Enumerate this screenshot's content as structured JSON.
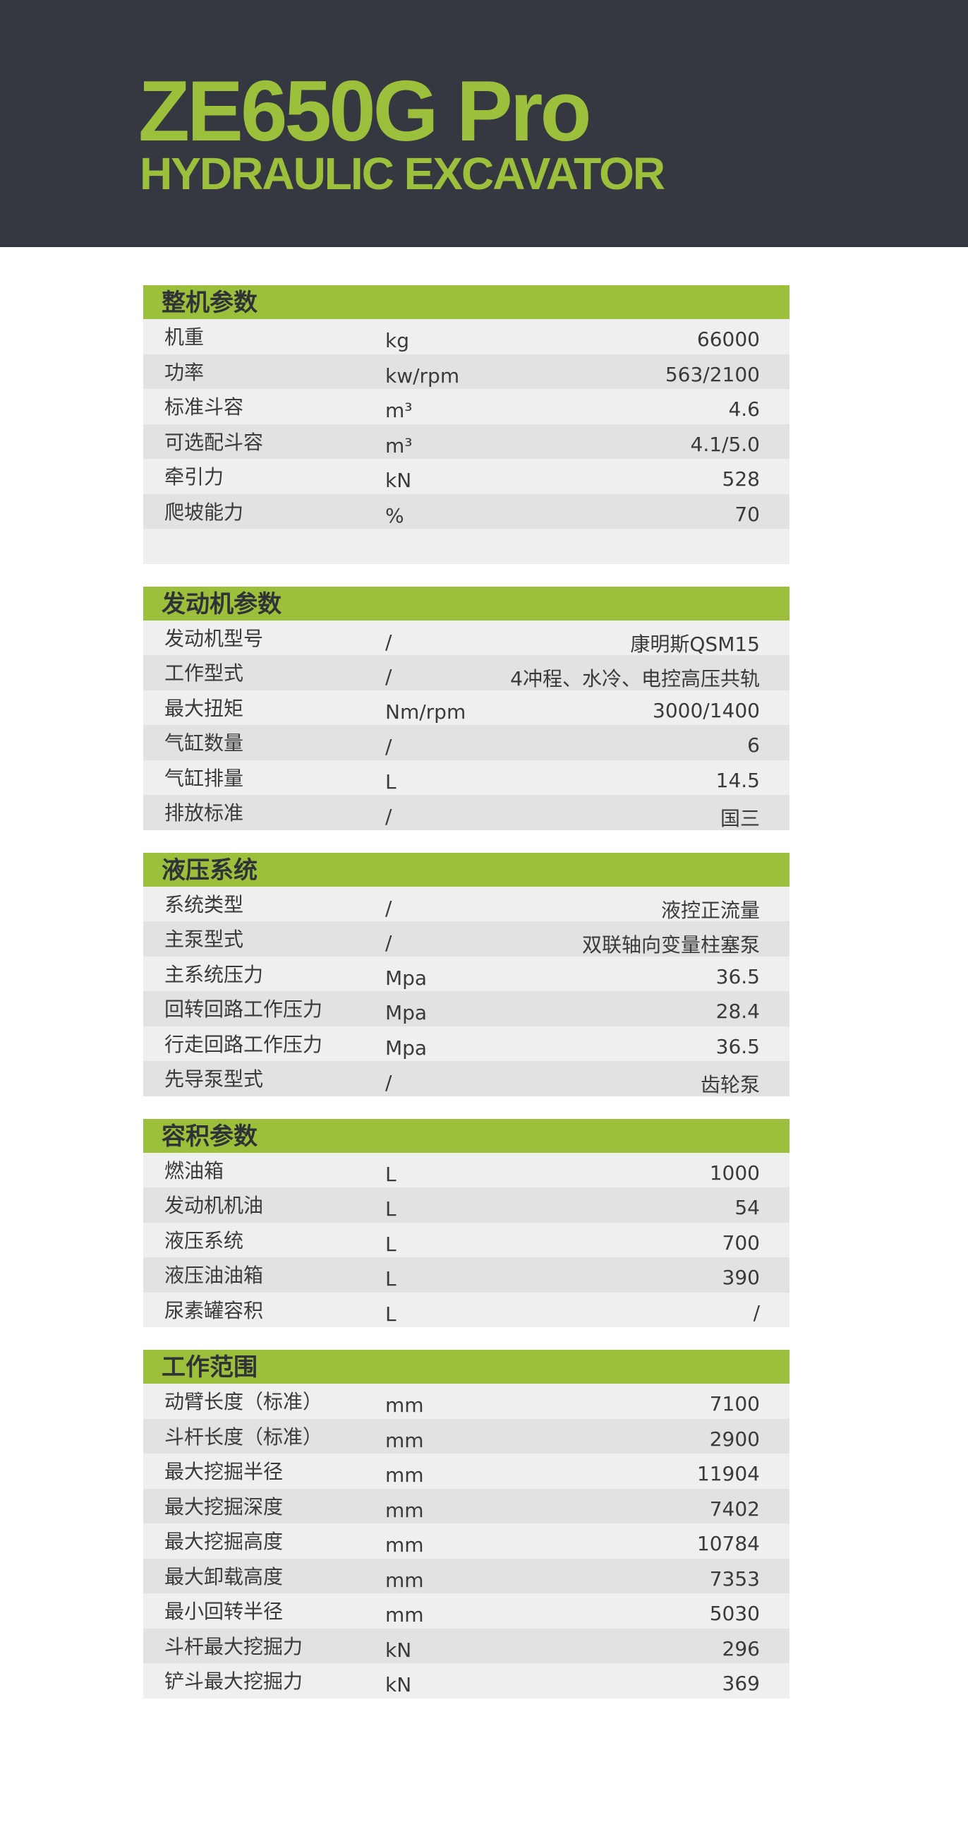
{
  "header": {
    "title": "ZE650G Pro",
    "subtitle": "HYDRAULIC EXCAVATOR"
  },
  "colors": {
    "header_bg": "#353840",
    "accent": "#9dc03c"
  },
  "sections": [
    {
      "title": "整机参数",
      "rows": [
        {
          "label": "机重",
          "unit": "kg",
          "value": "66000"
        },
        {
          "label": "功率",
          "unit": "kw/rpm",
          "value": "563/2100"
        },
        {
          "label": "标准斗容",
          "unit": "m³",
          "value": "4.6"
        },
        {
          "label": "可选配斗容",
          "unit": "m³",
          "value": "4.1/5.0"
        },
        {
          "label": "牵引力",
          "unit": "kN",
          "value": "528"
        },
        {
          "label": "爬坡能力",
          "unit": "%",
          "value": "70"
        },
        {
          "label": "",
          "unit": "",
          "value": ""
        }
      ]
    },
    {
      "title": "发动机参数",
      "rows": [
        {
          "label": "发动机型号",
          "unit": "/",
          "value": "康明斯QSM15"
        },
        {
          "label": "工作型式",
          "unit": "/",
          "value": "4冲程、水冷、电控高压共轨"
        },
        {
          "label": "最大扭矩",
          "unit": "Nm/rpm",
          "value": "3000/1400"
        },
        {
          "label": "气缸数量",
          "unit": "/",
          "value": "6"
        },
        {
          "label": "气缸排量",
          "unit": "L",
          "value": "14.5"
        },
        {
          "label": "排放标准",
          "unit": "/",
          "value": "国三"
        }
      ]
    },
    {
      "title": "液压系统",
      "rows": [
        {
          "label": "系统类型",
          "unit": "/",
          "value": "液控正流量"
        },
        {
          "label": "主泵型式",
          "unit": "/",
          "value": "双联轴向变量柱塞泵"
        },
        {
          "label": "主系统压力",
          "unit": "Mpa",
          "value": "36.5"
        },
        {
          "label": "回转回路工作压力",
          "unit": "Mpa",
          "value": "28.4"
        },
        {
          "label": "行走回路工作压力",
          "unit": "Mpa",
          "value": "36.5"
        },
        {
          "label": "先导泵型式",
          "unit": "/",
          "value": "齿轮泵"
        }
      ]
    },
    {
      "title": "容积参数",
      "rows": [
        {
          "label": "燃油箱",
          "unit": "L",
          "value": "1000"
        },
        {
          "label": "发动机机油",
          "unit": "L",
          "value": "54"
        },
        {
          "label": "液压系统",
          "unit": "L",
          "value": "700"
        },
        {
          "label": "液压油油箱",
          "unit": "L",
          "value": "390"
        },
        {
          "label": "尿素罐容积",
          "unit": "L",
          "value": "/"
        }
      ]
    },
    {
      "title": "工作范围",
      "rows": [
        {
          "label": "动臂长度（标准）",
          "unit": "mm",
          "value": "7100"
        },
        {
          "label": "斗杆长度（标准）",
          "unit": "mm",
          "value": "2900"
        },
        {
          "label": "最大挖掘半径",
          "unit": "mm",
          "value": "11904"
        },
        {
          "label": "最大挖掘深度",
          "unit": "mm",
          "value": "7402"
        },
        {
          "label": "最大挖掘高度",
          "unit": "mm",
          "value": "10784"
        },
        {
          "label": "最大卸载高度",
          "unit": "mm",
          "value": "7353"
        },
        {
          "label": "最小回转半径",
          "unit": "mm",
          "value": "5030"
        },
        {
          "label": "斗杆最大挖掘力",
          "unit": "kN",
          "value": "296"
        },
        {
          "label": "铲斗最大挖掘力",
          "unit": "kN",
          "value": "369"
        }
      ]
    }
  ]
}
